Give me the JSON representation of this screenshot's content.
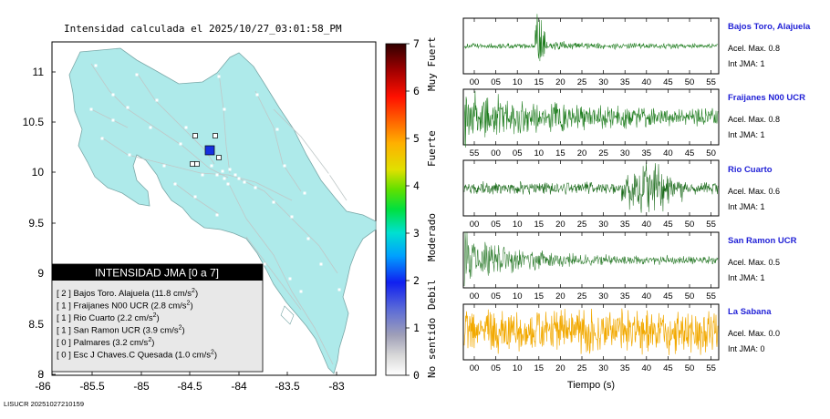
{
  "map": {
    "title": "Intensidad calculada el 2025/10/27_03:01:58_PM",
    "xticks": [
      "-86",
      "-85.5",
      "-85",
      "-84.5",
      "-84",
      "-83.5",
      "-83"
    ],
    "yticks": [
      "11",
      "10.5",
      "10",
      "9.5",
      "9",
      "8.5",
      "8"
    ],
    "land_color": "#aeeaea",
    "epicenter_color": "#1630e0",
    "legend": {
      "title": "INTENSIDAD JMA [0 a 7]",
      "rows": [
        {
          "level": "[ 2 ]",
          "station": "Bajos Toro. Alajuela",
          "accel": "(11.8 cm/s",
          "unit_sup": "2",
          ")": ")"
        },
        {
          "level": "[ 1 ]",
          "station": "Fraijanes N00 UCR",
          "accel": "(2.8 cm/s",
          "unit_sup": "2"
        },
        {
          "level": "[ 1 ]",
          "station": "Rio Cuarto",
          "accel": "(2.2 cm/s",
          "unit_sup": "2"
        },
        {
          "level": "[ 1 ]",
          "station": "San Ramon UCR",
          "accel": "(3.9 cm/s",
          "unit_sup": "2"
        },
        {
          "level": "[ 0 ]",
          "station": "Palmares",
          "accel": "(3.2 cm/s",
          "unit_sup": "2"
        },
        {
          "level": "[ 0 ]",
          "station": "Esc J Chaves.C Quesada",
          "accel": "(1.0 cm/s",
          "unit_sup": "2"
        }
      ]
    }
  },
  "colorbar": {
    "ticks": [
      "7",
      "6",
      "5",
      "4",
      "3",
      "2",
      "1",
      "0"
    ],
    "labels": [
      "Muy Fuerte",
      "Fuerte",
      "Moderado",
      "Debil",
      "No sentido"
    ]
  },
  "stations": [
    {
      "name": "Bajos Toro, Alajuela",
      "acel": "Acel. Max. 0.8",
      "jma": "Int JMA: 1",
      "color": "#1a7a1a",
      "ticks": [
        "00",
        "05",
        "10",
        "15",
        "20",
        "25",
        "30",
        "35",
        "40",
        "45",
        "50",
        "55"
      ]
    },
    {
      "name": "Fraijanes N00 UCR",
      "acel": "Acel. Max. 0.8",
      "jma": "Int JMA: 1",
      "color": "#1a7a1a",
      "ticks": [
        "55",
        "00",
        "05",
        "10",
        "15",
        "20",
        "25",
        "30",
        "35",
        "40",
        "45",
        "50"
      ]
    },
    {
      "name": "Rio Cuarto",
      "acel": "Acel. Max. 0.6",
      "jma": "Int JMA: 1",
      "color": "#1a6a1a",
      "ticks": [
        "00",
        "05",
        "10",
        "15",
        "20",
        "25",
        "30",
        "35",
        "40",
        "45",
        "50",
        "55"
      ]
    },
    {
      "name": "San Ramon UCR",
      "acel": "Acel. Max. 0.5",
      "jma": "Int JMA: 1",
      "color": "#2a7a2a",
      "ticks": [
        "00",
        "05",
        "10",
        "15",
        "20",
        "25",
        "30",
        "35",
        "40",
        "45",
        "50",
        "55"
      ]
    },
    {
      "name": "La Sabana",
      "acel": "Acel. Max. 0.0",
      "jma": "Int JMA: 0",
      "color": "#f2a900",
      "ticks": [
        "00",
        "05",
        "10",
        "15",
        "20",
        "25",
        "30",
        "35",
        "40",
        "45",
        "50",
        "55"
      ]
    }
  ],
  "xaxis_label": "Tiempo (s)",
  "footer": "LISUCR 20251027210159",
  "chart_data": {
    "type": "map",
    "title": "Intensidad calculada el 2025/10/27_03:01:58_PM",
    "xlim": [
      -86,
      -82.6
    ],
    "ylim": [
      8,
      11.3
    ],
    "colorbar_range": [
      0,
      7
    ],
    "seismograms_time_range_s": [
      0,
      57
    ]
  }
}
